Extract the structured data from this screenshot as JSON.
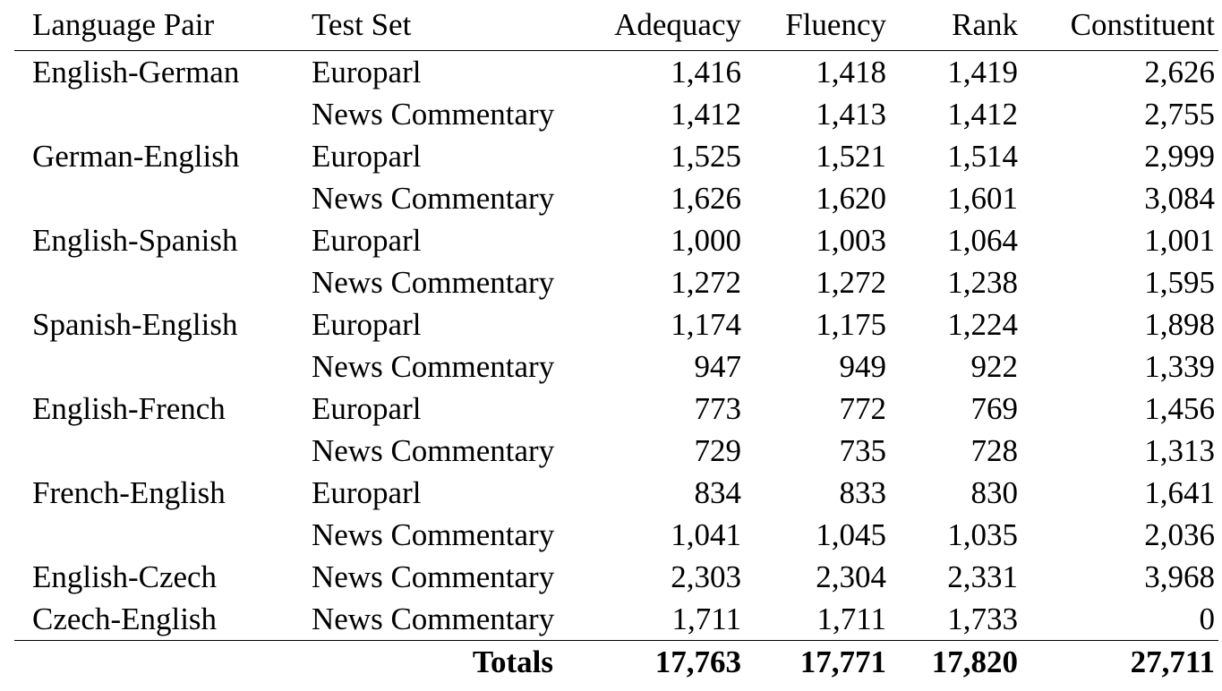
{
  "table": {
    "headers": [
      "Language Pair",
      "Test Set",
      "Adequacy",
      "Fluency",
      "Rank",
      "Constituent"
    ],
    "rows": [
      [
        "English-German",
        "Europarl",
        "1,416",
        "1,418",
        "1,419",
        "2,626"
      ],
      [
        "",
        "News Commentary",
        "1,412",
        "1,413",
        "1,412",
        "2,755"
      ],
      [
        "German-English",
        "Europarl",
        "1,525",
        "1,521",
        "1,514",
        "2,999"
      ],
      [
        "",
        "News Commentary",
        "1,626",
        "1,620",
        "1,601",
        "3,084"
      ],
      [
        "English-Spanish",
        "Europarl",
        "1,000",
        "1,003",
        "1,064",
        "1,001"
      ],
      [
        "",
        "News Commentary",
        "1,272",
        "1,272",
        "1,238",
        "1,595"
      ],
      [
        "Spanish-English",
        "Europarl",
        "1,174",
        "1,175",
        "1,224",
        "1,898"
      ],
      [
        "",
        "News Commentary",
        "947",
        "949",
        "922",
        "1,339"
      ],
      [
        "English-French",
        "Europarl",
        "773",
        "772",
        "769",
        "1,456"
      ],
      [
        "",
        "News Commentary",
        "729",
        "735",
        "728",
        "1,313"
      ],
      [
        "French-English",
        "Europarl",
        "834",
        "833",
        "830",
        "1,641"
      ],
      [
        "",
        "News Commentary",
        "1,041",
        "1,045",
        "1,035",
        "2,036"
      ],
      [
        "English-Czech",
        "News Commentary",
        "2,303",
        "2,304",
        "2,331",
        "3,968"
      ],
      [
        "Czech-English",
        "News Commentary",
        "1,711",
        "1,711",
        "1,733",
        "0"
      ]
    ],
    "totals": {
      "label": "Totals",
      "adequacy": "17,763",
      "fluency": "17,771",
      "rank": "17,820",
      "constituent": "27,711"
    }
  }
}
